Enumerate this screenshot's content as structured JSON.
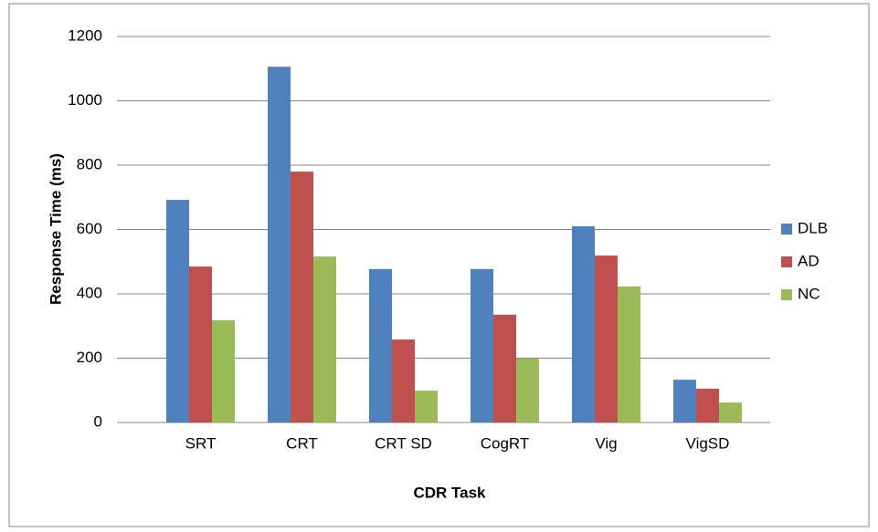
{
  "chart_data": {
    "type": "bar",
    "x_label": "CDR Task",
    "y_label": "Response Time (ms)",
    "categories": [
      "SRT",
      "CRT",
      "CRT SD",
      "CogRT",
      "Vig",
      "VigSD"
    ],
    "series": [
      {
        "name": "DLB",
        "color": "#4f81bd",
        "values": [
          692,
          1106,
          477,
          477,
          610,
          133
        ]
      },
      {
        "name": "AD",
        "color": "#c0504d",
        "values": [
          485,
          780,
          258,
          335,
          519,
          105
        ]
      },
      {
        "name": "NC",
        "color": "#9bbb59",
        "values": [
          318,
          516,
          99,
          199,
          423,
          62
        ]
      }
    ],
    "ylim": [
      0,
      1200
    ],
    "yticks": [
      0,
      200,
      400,
      600,
      800,
      1000,
      1200
    ],
    "grid": true,
    "legend": "right"
  }
}
